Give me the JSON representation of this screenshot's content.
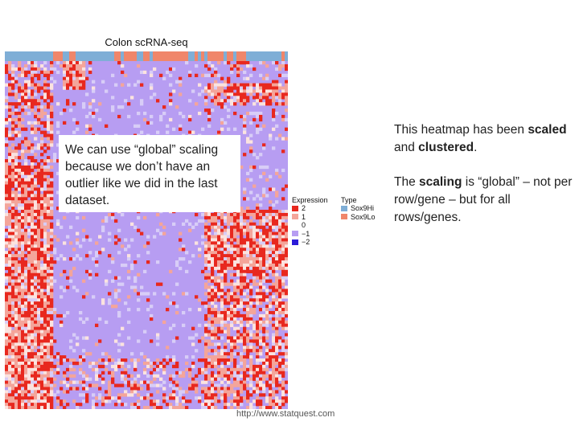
{
  "chart_data": {
    "type": "heatmap",
    "title": "Colon scRNA-seq",
    "legend_expression": {
      "title": "Expression",
      "entries": [
        {
          "label": "2",
          "color": "#e8281e"
        },
        {
          "label": "1",
          "color": "#f4a59a"
        },
        {
          "label": "0",
          "color": "#ffffff"
        },
        {
          "label": "−1",
          "color": "#b79df2"
        },
        {
          "label": "−2",
          "color": "#2b1bd8"
        }
      ]
    },
    "legend_type": {
      "title": "Type",
      "entries": [
        {
          "label": "Sox9Hi",
          "color": "#7faed6"
        },
        {
          "label": "Sox9Lo",
          "color": "#f0866a"
        }
      ]
    }
  },
  "callout": {
    "text": "We can use “global” scaling because we don’t have an outlier like we did in the last dataset."
  },
  "notes": {
    "line1_a": "This heatmap has been ",
    "line1_b": "scaled",
    "line1_c": " and ",
    "line1_d": "clustered",
    "line1_e": ".",
    "line2_a": "The ",
    "line2_b": "scaling",
    "line2_c": " is “global” – not per row/gene – but for all rows/genes."
  },
  "footer": {
    "url": "http://www.statquest.com"
  }
}
